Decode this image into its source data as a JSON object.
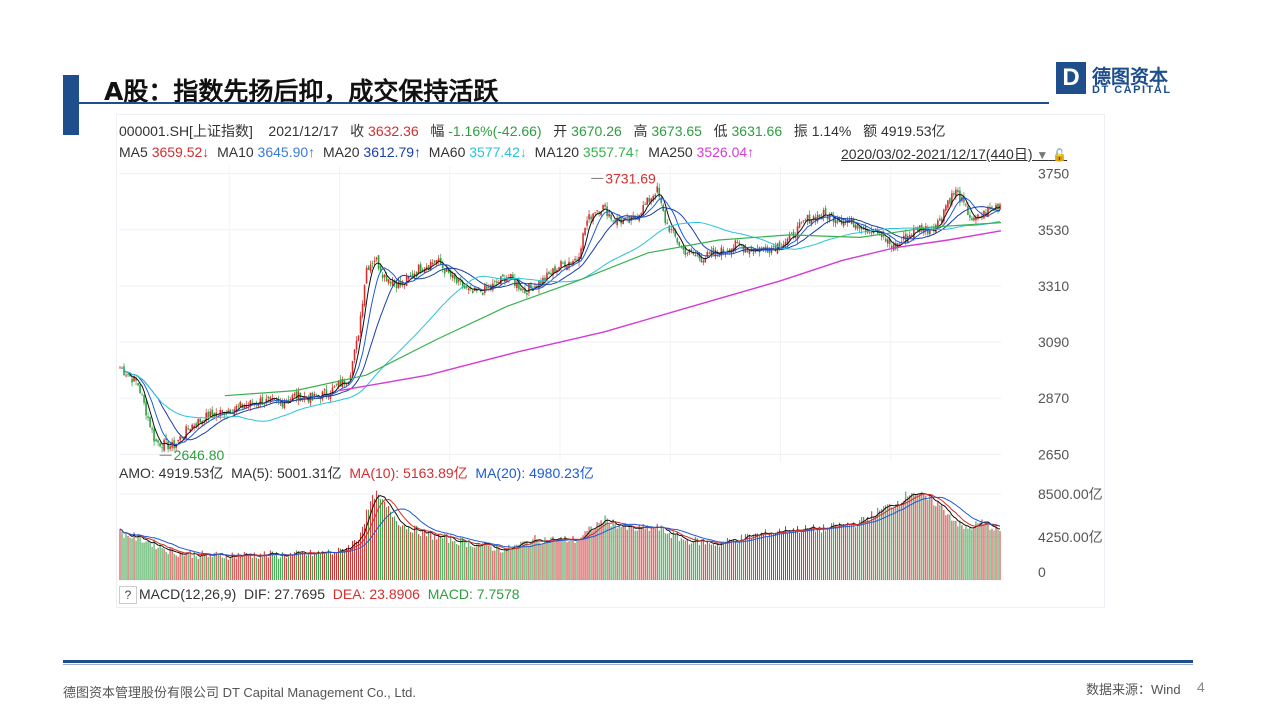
{
  "slide": {
    "title": "A股：指数先扬后抑，成交保持活跃",
    "logo_cn": "德图资本",
    "logo_en": "DT CAPITAL",
    "logo_letter": "D",
    "footer_left": "德图资本管理股份有限公司  DT Capital Management  Co., Ltd.",
    "footer_right": "数据来源：Wind",
    "page_number": "4"
  },
  "quote": {
    "code": "000001.SH[上证指数]",
    "date": "2021/12/17",
    "close_label": "收",
    "close": "3632.36",
    "change_label": "幅",
    "change": "-1.16%(-42.66)",
    "open_label": "开",
    "open": "3670.26",
    "high_label": "高",
    "high": "3673.65",
    "low_label": "低",
    "low": "3631.66",
    "amp_label": "振",
    "amp": "1.14%",
    "amount_label": "额",
    "amount": "4919.53亿"
  },
  "ma_line": {
    "ma5_label": "MA5",
    "ma5": "3659.52↓",
    "ma10_label": "MA10",
    "ma10": "3645.90↑",
    "ma20_label": "MA20",
    "ma20": "3612.79↑",
    "ma60_label": "MA60",
    "ma60": "3577.42↓",
    "ma120_label": "MA120",
    "ma120": "3557.74↑",
    "ma250_label": "MA250",
    "ma250": "3526.04↑",
    "range": "2020/03/02-2021/12/17(440日)"
  },
  "volume_line": {
    "amo_label": "AMO:",
    "amo": "4919.53亿",
    "ma5_label": "MA(5):",
    "ma5": "5001.31亿",
    "ma10_label": "MA(10):",
    "ma10": "5163.89亿",
    "ma20_label": "MA(20):",
    "ma20": "4980.23亿"
  },
  "macd_line": {
    "q": "?",
    "label": "MACD(12,26,9)",
    "dif_label": "DIF:",
    "dif": "27.7695",
    "dea_label": "DEA:",
    "dea": "23.8906",
    "macd_label": "MACD:",
    "macd": "7.7578"
  },
  "colors": {
    "up": "#d32f2f",
    "down": "#2e9e3f",
    "ma5": "#111111",
    "ma10": "#1e5bd8",
    "ma20": "#1a3fa8",
    "ma60": "#2bc3d9",
    "ma120": "#37b24d",
    "ma250": "#d63bd6",
    "brand": "#1f4e8c"
  },
  "chart_data": [
    {
      "type": "candlestick",
      "title": "",
      "y_ticks": [
        "3750",
        "3530",
        "3310",
        "3090",
        "2870",
        "2650"
      ],
      "ylim": [
        2620,
        3780
      ],
      "annotations": [
        {
          "text": "3731.69",
          "x": 0.5354,
          "y": 3731.69,
          "color": "#d32f2f"
        },
        {
          "text": "2646.80",
          "x": 0.0461,
          "y": 2646.8,
          "color": "#2e9e3f"
        }
      ],
      "close_keypoints": [
        [
          0,
          2990
        ],
        [
          0.02,
          2930
        ],
        [
          0.04,
          2700
        ],
        [
          0.06,
          2680
        ],
        [
          0.08,
          2760
        ],
        [
          0.1,
          2800
        ],
        [
          0.12,
          2820
        ],
        [
          0.14,
          2840
        ],
        [
          0.16,
          2860
        ],
        [
          0.18,
          2850
        ],
        [
          0.2,
          2880
        ],
        [
          0.22,
          2870
        ],
        [
          0.24,
          2900
        ],
        [
          0.26,
          2950
        ],
        [
          0.27,
          3100
        ],
        [
          0.28,
          3380
        ],
        [
          0.29,
          3420
        ],
        [
          0.3,
          3350
        ],
        [
          0.32,
          3310
        ],
        [
          0.34,
          3380
        ],
        [
          0.36,
          3410
        ],
        [
          0.38,
          3330
        ],
        [
          0.4,
          3280
        ],
        [
          0.42,
          3300
        ],
        [
          0.44,
          3350
        ],
        [
          0.46,
          3290
        ],
        [
          0.48,
          3330
        ],
        [
          0.5,
          3390
        ],
        [
          0.52,
          3420
        ],
        [
          0.53,
          3560
        ],
        [
          0.54,
          3610
        ],
        [
          0.55,
          3620
        ],
        [
          0.56,
          3570
        ],
        [
          0.58,
          3560
        ],
        [
          0.6,
          3640
        ],
        [
          0.61,
          3690
        ],
        [
          0.62,
          3560
        ],
        [
          0.64,
          3450
        ],
        [
          0.66,
          3420
        ],
        [
          0.68,
          3440
        ],
        [
          0.7,
          3470
        ],
        [
          0.72,
          3450
        ],
        [
          0.74,
          3460
        ],
        [
          0.76,
          3490
        ],
        [
          0.78,
          3570
        ],
        [
          0.8,
          3590
        ],
        [
          0.82,
          3570
        ],
        [
          0.84,
          3550
        ],
        [
          0.86,
          3520
        ],
        [
          0.88,
          3460
        ],
        [
          0.9,
          3520
        ],
        [
          0.91,
          3540
        ],
        [
          0.92,
          3530
        ],
        [
          0.93,
          3560
        ],
        [
          0.94,
          3640
        ],
        [
          0.95,
          3680
        ],
        [
          0.96,
          3620
        ],
        [
          0.97,
          3560
        ],
        [
          0.98,
          3590
        ],
        [
          1.0,
          3632
        ]
      ],
      "ma250_keypoints": [
        [
          0.25,
          2900
        ],
        [
          0.35,
          2960
        ],
        [
          0.45,
          3050
        ],
        [
          0.55,
          3130
        ],
        [
          0.65,
          3230
        ],
        [
          0.75,
          3330
        ],
        [
          0.82,
          3410
        ],
        [
          0.88,
          3460
        ],
        [
          0.94,
          3490
        ],
        [
          1.0,
          3526
        ]
      ],
      "ma120_keypoints": [
        [
          0.12,
          2880
        ],
        [
          0.2,
          2900
        ],
        [
          0.28,
          2960
        ],
        [
          0.36,
          3100
        ],
        [
          0.44,
          3230
        ],
        [
          0.52,
          3330
        ],
        [
          0.6,
          3440
        ],
        [
          0.68,
          3490
        ],
        [
          0.76,
          3510
        ],
        [
          0.84,
          3500
        ],
        [
          0.92,
          3540
        ],
        [
          1.0,
          3558
        ]
      ]
    },
    {
      "type": "bar",
      "title": "",
      "y_ticks": [
        "8500.00亿",
        "4250.00亿",
        "0"
      ],
      "ylim": [
        0,
        9500
      ],
      "unit": "亿",
      "amount_keypoints": [
        [
          0,
          4700
        ],
        [
          0.03,
          3900
        ],
        [
          0.06,
          2800
        ],
        [
          0.1,
          2400
        ],
        [
          0.15,
          2500
        ],
        [
          0.2,
          2500
        ],
        [
          0.25,
          2800
        ],
        [
          0.27,
          4000
        ],
        [
          0.28,
          6500
        ],
        [
          0.29,
          8600
        ],
        [
          0.3,
          7500
        ],
        [
          0.32,
          5500
        ],
        [
          0.35,
          4500
        ],
        [
          0.4,
          3600
        ],
        [
          0.44,
          3000
        ],
        [
          0.47,
          4000
        ],
        [
          0.52,
          4000
        ],
        [
          0.55,
          6000
        ],
        [
          0.58,
          5000
        ],
        [
          0.61,
          5200
        ],
        [
          0.64,
          4000
        ],
        [
          0.68,
          3600
        ],
        [
          0.72,
          4400
        ],
        [
          0.76,
          5000
        ],
        [
          0.8,
          5100
        ],
        [
          0.84,
          5700
        ],
        [
          0.87,
          7200
        ],
        [
          0.88,
          7500
        ],
        [
          0.9,
          8800
        ],
        [
          0.93,
          7500
        ],
        [
          0.96,
          5000
        ],
        [
          0.98,
          5700
        ],
        [
          1.0,
          4900
        ]
      ]
    }
  ]
}
